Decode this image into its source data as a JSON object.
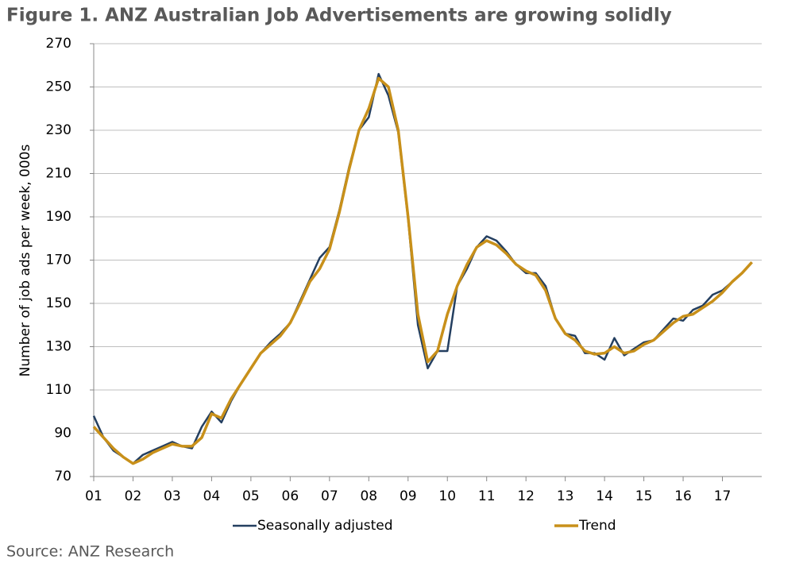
{
  "chart_data": {
    "type": "line",
    "title": "Figure 1. ANZ Australian Job Advertisements are growing solidly",
    "y_label": "Number of job ads per week, 000s",
    "source": "Source: ANZ Research",
    "x": [
      2001,
      2001.25,
      2001.5,
      2001.75,
      2002,
      2002.25,
      2002.5,
      2002.75,
      2003,
      2003.25,
      2003.5,
      2003.75,
      2004,
      2004.25,
      2004.5,
      2004.75,
      2005,
      2005.25,
      2005.5,
      2005.75,
      2006,
      2006.25,
      2006.5,
      2006.75,
      2007,
      2007.25,
      2007.5,
      2007.75,
      2008,
      2008.25,
      2008.5,
      2008.75,
      2009,
      2009.25,
      2009.5,
      2009.75,
      2010,
      2010.25,
      2010.5,
      2010.75,
      2011,
      2011.25,
      2011.5,
      2011.75,
      2012,
      2012.25,
      2012.5,
      2012.75,
      2013,
      2013.25,
      2013.5,
      2013.75,
      2014,
      2014.25,
      2014.5,
      2014.75,
      2015,
      2015.25,
      2015.5,
      2015.75,
      2016,
      2016.25,
      2016.5,
      2016.75,
      2017,
      2017.25,
      2017.5,
      2017.75
    ],
    "series": [
      {
        "name": "Seasonally adjusted",
        "color": "#243f60",
        "width": 2.5,
        "values": [
          98,
          88,
          82,
          79,
          76,
          80,
          82,
          84,
          86,
          84,
          83,
          93,
          100,
          95,
          105,
          113,
          120,
          127,
          132,
          136,
          141,
          151,
          161,
          171,
          176,
          193,
          213,
          230,
          236,
          256,
          246,
          229,
          189,
          140,
          120,
          128,
          128,
          158,
          166,
          176,
          181,
          179,
          174,
          168,
          164,
          164,
          158,
          143,
          136,
          135,
          127,
          127,
          124,
          134,
          126,
          129,
          132,
          133,
          138,
          143,
          142,
          147,
          149,
          154,
          156,
          160,
          164,
          169
        ]
      },
      {
        "name": "Trend",
        "color": "#c8901a",
        "width": 3.5,
        "values": [
          93,
          88,
          83,
          79,
          76,
          78,
          81,
          83,
          85,
          84,
          84,
          88,
          99,
          97,
          106,
          113,
          120,
          127,
          131,
          135,
          141,
          150,
          160,
          166,
          175,
          192,
          212,
          230,
          240,
          254,
          250,
          230,
          190,
          145,
          123,
          128,
          145,
          158,
          168,
          176,
          179,
          177,
          173,
          168,
          165,
          163,
          156,
          143,
          136,
          133,
          128,
          126.5,
          127,
          130,
          127,
          128,
          131,
          133,
          137,
          141,
          144,
          145,
          148,
          151,
          155,
          160,
          164,
          169
        ]
      }
    ],
    "xlim": [
      2001,
      2018
    ],
    "xticks": [
      {
        "value": 2001,
        "label": "01"
      },
      {
        "value": 2002,
        "label": "02"
      },
      {
        "value": 2003,
        "label": "03"
      },
      {
        "value": 2004,
        "label": "04"
      },
      {
        "value": 2005,
        "label": "05"
      },
      {
        "value": 2006,
        "label": "06"
      },
      {
        "value": 2007,
        "label": "07"
      },
      {
        "value": 2008,
        "label": "08"
      },
      {
        "value": 2009,
        "label": "09"
      },
      {
        "value": 2010,
        "label": "10"
      },
      {
        "value": 2011,
        "label": "11"
      },
      {
        "value": 2012,
        "label": "12"
      },
      {
        "value": 2013,
        "label": "13"
      },
      {
        "value": 2014,
        "label": "14"
      },
      {
        "value": 2015,
        "label": "15"
      },
      {
        "value": 2016,
        "label": "16"
      },
      {
        "value": 2017,
        "label": "17"
      }
    ],
    "ylim": [
      70,
      270
    ],
    "yticks": [
      70,
      90,
      110,
      130,
      150,
      170,
      190,
      210,
      230,
      250,
      270
    ],
    "grid": true
  }
}
